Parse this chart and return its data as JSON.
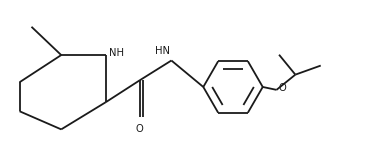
{
  "bg_color": "#ffffff",
  "line_color": "#1a1a1a",
  "line_width": 1.3,
  "font_size": 7.2,
  "fig_width": 3.66,
  "fig_height": 1.5,
  "dpi": 100,
  "xlim": [
    0,
    10
  ],
  "ylim": [
    0,
    4.1
  ]
}
